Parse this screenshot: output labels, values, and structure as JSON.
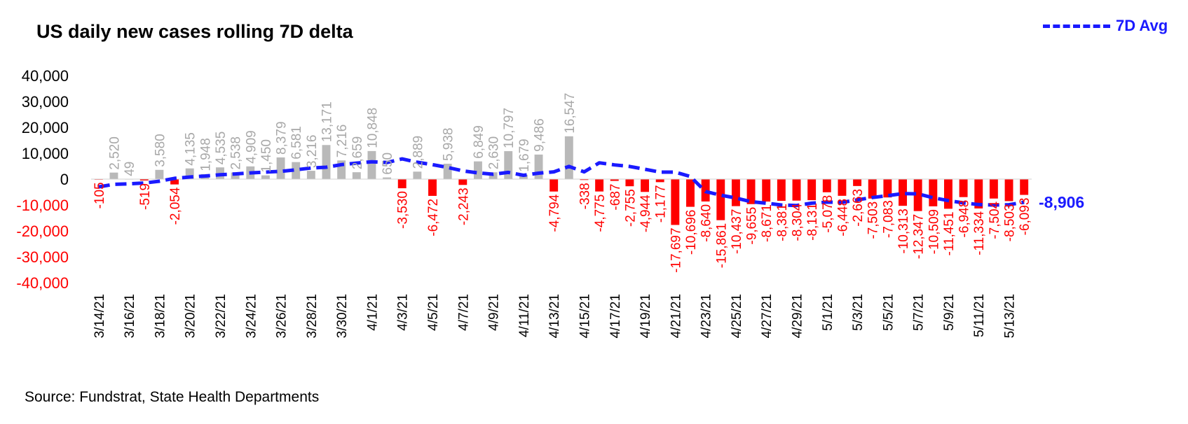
{
  "title": "US daily new cases rolling 7D delta",
  "source": "Source:  Fundstrat,  State Health Departments",
  "legend": {
    "label": "7D Avg"
  },
  "colors": {
    "positive": "#b9b9b9",
    "negative": "#ff0000",
    "avg_line": "#1a1aff"
  },
  "chart_data": {
    "type": "bar",
    "title": "US daily new cases rolling 7D delta",
    "xlabel": "",
    "ylabel": "",
    "ylim": [
      -40000,
      40000
    ],
    "yticks": [
      40000,
      30000,
      20000,
      10000,
      0,
      -10000,
      -20000,
      -30000,
      -40000
    ],
    "ytick_labels": [
      "40,000",
      "30,000",
      "20,000",
      "10,000",
      "0",
      "-10,000",
      "-20,000",
      "-30,000",
      "-40,000"
    ],
    "legend_position": "top-right",
    "grid": false,
    "x_tick_labels": [
      "3/14/21",
      "3/16/21",
      "3/18/21",
      "3/20/21",
      "3/22/21",
      "3/24/21",
      "3/26/21",
      "3/28/21",
      "3/30/21",
      "4/1/21",
      "4/3/21",
      "4/5/21",
      "4/7/21",
      "4/9/21",
      "4/11/21",
      "4/13/21",
      "4/15/21",
      "4/17/21",
      "4/19/21",
      "4/21/21",
      "4/23/21",
      "4/25/21",
      "4/27/21",
      "4/29/21",
      "5/1/21",
      "5/3/21",
      "5/5/21",
      "5/7/21",
      "5/9/21",
      "5/11/21",
      "5/13/21"
    ],
    "series": [
      {
        "name": "",
        "values": [
          -105,
          2520,
          49,
          -519,
          3580,
          -2054,
          4135,
          1948,
          4535,
          2538,
          4909,
          1450,
          8379,
          6581,
          3216,
          13171,
          7216,
          2659,
          10848,
          650,
          -3530,
          2889,
          -6472,
          5938,
          -2243,
          6849,
          2630,
          10797,
          1679,
          9486,
          -4794,
          16547,
          -338,
          -4775,
          -687,
          -2755,
          -4944,
          -1177,
          -17697,
          -10696,
          -8640,
          -15861,
          -10437,
          -9655,
          -8671,
          -8381,
          -8304,
          -8131,
          -5078,
          -6448,
          -2663,
          -7503,
          -7083,
          -10313,
          -12347,
          -10509,
          -11451,
          -6948,
          -11334,
          -7504,
          -8503,
          -6093
        ],
        "labels": [
          "-105",
          "2,520",
          "49",
          "-519",
          "3,580",
          "-2,054",
          "4,135",
          "1,948",
          "4,535",
          "2,538",
          "4,909",
          "1,450",
          "8,379",
          "6,581",
          "3,216",
          "13,171",
          "7,216",
          "2,659",
          "10,848",
          "650",
          "-3,530",
          "2,889",
          "-6,472",
          "5,938",
          "-2,243",
          "6,849",
          "2,630",
          "10,797",
          "1,679",
          "9,486",
          "-4,794",
          "16,547",
          "-338",
          "-4,775",
          "-687",
          "-2,755",
          "-4,944",
          "-1,177",
          "-17,697",
          "-10,696",
          "-8,640",
          "-15,861",
          "-10,437",
          "-9,655",
          "-8,671",
          "-8,381",
          "-8,304",
          "-8,131",
          "-5,078",
          "-6,448",
          "-2,663",
          "-7,503",
          "-7,083",
          "-10,313",
          "-12,347",
          "-10,509",
          "-11,451",
          "-6,948",
          "-11,334",
          "-7,504",
          "-8,503",
          "-6,093"
        ]
      },
      {
        "name": "7D Avg",
        "type": "line",
        "values": [
          -3000,
          -2000,
          -1800,
          -1500,
          -800,
          300,
          800,
          1200,
          1700,
          2000,
          2400,
          2700,
          3000,
          3600,
          4300,
          4600,
          5600,
          6200,
          6700,
          6400,
          7800,
          6500,
          5600,
          4500,
          3200,
          2400,
          1900,
          2600,
          1500,
          2300,
          2800,
          4900,
          2800,
          6300,
          5500,
          4900,
          3800,
          2700,
          2700,
          1000,
          -4800,
          -6200,
          -7300,
          -8700,
          -9300,
          -10000,
          -10200,
          -9300,
          -8900,
          -9000,
          -8000,
          -7100,
          -6400,
          -5600,
          -5700,
          -7200,
          -8300,
          -9200,
          -9800,
          -10000,
          -9900,
          -8906
        ]
      }
    ],
    "last_value_label": "-8,906"
  }
}
